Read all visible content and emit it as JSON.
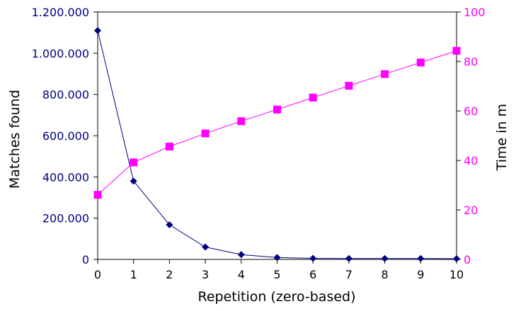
{
  "chart_data": {
    "type": "line",
    "xlabel": "Repetition (zero-based)",
    "ylabel": "Matches found",
    "y2label": "Time in m",
    "x": [
      0,
      1,
      2,
      3,
      4,
      5,
      6,
      7,
      8,
      9,
      10
    ],
    "xlim": [
      0,
      10
    ],
    "ylim": [
      0,
      1200000
    ],
    "y2lim": [
      0,
      100
    ],
    "x_ticks": [
      "0",
      "1",
      "2",
      "3",
      "4",
      "5",
      "6",
      "7",
      "8",
      "9",
      "10"
    ],
    "y_ticks": [
      "0",
      "200.000",
      "400.000",
      "600.000",
      "800.000",
      "1.000.000",
      "1.200.000"
    ],
    "y2_ticks": [
      "0",
      "20",
      "40",
      "60",
      "80",
      "100"
    ],
    "grid": false,
    "series": [
      {
        "axis": "left",
        "color": "#000080",
        "marker": "diamond",
        "values": [
          1110000,
          380000,
          168000,
          60000,
          23000,
          9000,
          5000,
          4000,
          4000,
          4000,
          3500
        ]
      },
      {
        "axis": "right",
        "color": "#ff00ff",
        "marker": "square",
        "values": [
          26.1,
          39.2,
          45.6,
          50.9,
          55.9,
          60.6,
          65.4,
          70.2,
          74.9,
          79.6,
          84.3
        ]
      }
    ]
  }
}
